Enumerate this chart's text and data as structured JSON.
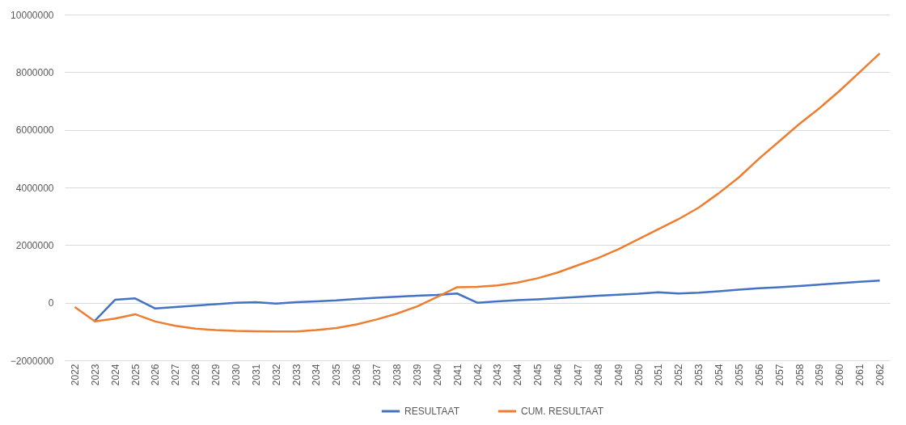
{
  "chart_data": {
    "type": "line",
    "categories": [
      "2022",
      "2023",
      "2024",
      "2025",
      "2026",
      "2027",
      "2028",
      "2029",
      "2030",
      "2031",
      "2032",
      "2033",
      "2034",
      "2035",
      "2036",
      "2037",
      "2038",
      "2039",
      "2040",
      "2041",
      "2042",
      "2043",
      "2044",
      "2045",
      "2046",
      "2047",
      "2048",
      "2049",
      "2050",
      "2051",
      "2052",
      "2053",
      "2054",
      "2055",
      "2056",
      "2057",
      "2058",
      "2059",
      "2060",
      "2061",
      "2062"
    ],
    "series": [
      {
        "name": "RESULTAAT",
        "color": "#4472c4",
        "values": [
          null,
          -620000,
          100000,
          150000,
          -200000,
          -150000,
          -100000,
          -50000,
          0,
          20000,
          -30000,
          20000,
          50000,
          80000,
          130000,
          170000,
          210000,
          240000,
          270000,
          320000,
          0,
          50000,
          90000,
          120000,
          160000,
          200000,
          240000,
          280000,
          310000,
          360000,
          320000,
          350000,
          400000,
          450000,
          500000,
          540000,
          580000,
          630000,
          680000,
          730000,
          770000
        ]
      },
      {
        "name": "CUM. RESULTAAT",
        "color": "#ed7d31",
        "values": [
          -150000,
          -650000,
          -550000,
          -400000,
          -650000,
          -800000,
          -900000,
          -950000,
          -980000,
          -990000,
          -1000000,
          -1000000,
          -950000,
          -880000,
          -750000,
          -580000,
          -380000,
          -130000,
          200000,
          540000,
          550000,
          600000,
          700000,
          850000,
          1050000,
          1300000,
          1550000,
          1850000,
          2200000,
          2550000,
          2900000,
          3300000,
          3800000,
          4350000,
          5000000,
          5600000,
          6200000,
          6750000,
          7350000,
          8000000,
          8650000
        ]
      }
    ],
    "ylim": [
      -2000000,
      10000000
    ],
    "yticks": [
      -2000000,
      0,
      2000000,
      4000000,
      6000000,
      8000000,
      10000000
    ],
    "grid": "y",
    "legend": "bottom",
    "line_style": "solid"
  }
}
